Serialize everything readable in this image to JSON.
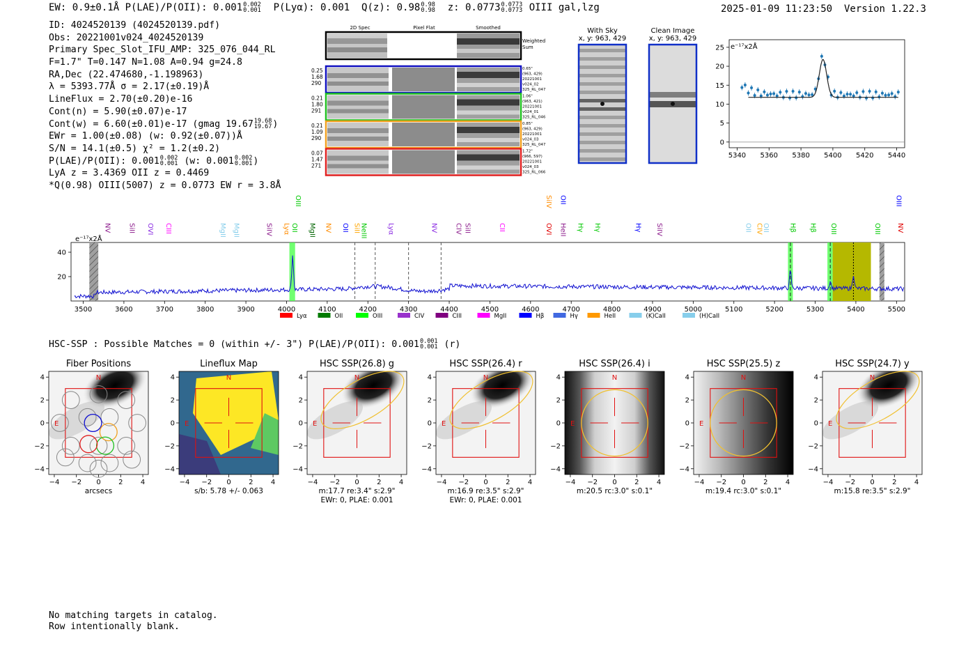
{
  "header": {
    "left": "EW: 0.9±0.1Å  P(LAE)/P(OII): 0.001",
    "left_frac": [
      "0.002",
      "0.001"
    ],
    "plya": "P(Lyα): 0.001",
    "qz": "Q(z): 0.98",
    "qz_frac": [
      "0.98",
      "0.98"
    ],
    "z": "z: 0.0773",
    "z_frac": [
      "0.0773",
      "0.0773"
    ],
    "line": "OIII  gal,lzg",
    "datetime": "2025-01-09 11:23:50",
    "version": "Version 1.22.3"
  },
  "info_lines": [
    "ID: 4024520139 (4024520139.pdf)",
    "Obs: 20221001v024_4024520139",
    "Primary Spec_Slot_IFU_AMP: 325_076_044_RL",
    "F=1.7\"  T=0.147  N=1.08  A=0.94  g=24.8",
    "RA,Dec (22.474680,-1.198963)",
    "λ = 5393.77Å  σ = 2.17(±0.19)Å",
    "LineFlux = 2.70(±0.20)e-16",
    "Cont(n) = 5.90(±0.07)e-17",
    "Cont(w) = 6.60(±0.01)e-17 (gmag 19.67",
    "EWr = 1.00(±0.08) (w: 0.92(±0.07))Å",
    "S/N = 14.1(±0.5)  χ² = 1.2(±0.2)",
    "P(LAE)/P(OII): 0.001",
    "LyA z = 3.4369  OII z = 0.4469",
    "*Q(0.98) OIII(5007) z = 0.0773  EW r = 3.8Å"
  ],
  "info_extra": {
    "gmag_frac": [
      "19.68",
      "19.67"
    ],
    "plae_frac": [
      "0.002",
      "0.001"
    ],
    "plae_w": "(w: 0.001",
    "plae_w_frac": [
      "0.002",
      "0.001"
    ]
  },
  "cutouts": {
    "headers": [
      "2D Spec",
      "Pixel Flat",
      "Smoothed"
    ],
    "weighted_label": [
      "Weighted",
      "Sum"
    ],
    "rows": [
      {
        "left": [
          "0.25",
          "1.68",
          "290"
        ],
        "right": [
          "0.65\"",
          "(963, 429)",
          "20221001",
          "v024_02",
          "325_RL_047"
        ],
        "color": "#1010c0"
      },
      {
        "left": [
          "0.21",
          "1.80",
          "291"
        ],
        "right": [
          "1.06\"",
          "(963, 421)",
          "20221001",
          "v024_01",
          "325_RL_046"
        ],
        "color": "#20c020"
      },
      {
        "left": [
          "0.21",
          "1.09",
          "290"
        ],
        "right": [
          "0.85\"",
          "(963, 429)",
          "20221001",
          "v024_03",
          "325_RL_047"
        ],
        "color": "#f0a020"
      },
      {
        "left": [
          "0.07",
          "1.47",
          "271"
        ],
        "right": [
          "1.72\"",
          "(966, 597)",
          "20221001",
          "v024_03",
          "325_RL_066"
        ],
        "color": "#e02020"
      }
    ]
  },
  "with_sky": {
    "title": "With Sky",
    "coords": "x, y: 963, 429"
  },
  "clean_image": {
    "title": "Clean Image",
    "coords": "x, y: 963, 429"
  },
  "zoom_plot": {
    "unit_label": "e⁻¹⁷x2Å",
    "yticks": [
      "25",
      "20",
      "15",
      "10",
      "5",
      "0"
    ],
    "xticks": [
      "5340",
      "5360",
      "5380",
      "5400",
      "5420",
      "5440"
    ]
  },
  "spectrum": {
    "unit_label": "e⁻¹⁷x2Å",
    "yticks": [
      "40",
      "20"
    ],
    "xticks": [
      "3500",
      "3600",
      "3700",
      "3800",
      "3900",
      "4000",
      "4100",
      "4200",
      "4300",
      "4400",
      "4500",
      "4600",
      "4700",
      "4800",
      "4900",
      "5000",
      "5100",
      "5200",
      "5300",
      "5400",
      "5500"
    ],
    "line_labels": [
      {
        "name": "NV",
        "x": 3555,
        "color": "#8b1a8b",
        "row": 1
      },
      {
        "name": "SiII",
        "x": 3615,
        "color": "#8b1a8b",
        "row": 1
      },
      {
        "name": "OVI",
        "x": 3660,
        "color": "#8a2be2",
        "row": 1
      },
      {
        "name": "CIII",
        "x": 3705,
        "color": "#ff00ff",
        "row": 1
      },
      {
        "name": "MgII",
        "x": 3838,
        "color": "#87ceeb",
        "row": 1
      },
      {
        "name": "MgII",
        "x": 3872,
        "color": "#87ceeb",
        "row": 1
      },
      {
        "name": "SiIV",
        "x": 3952,
        "color": "#8b1a8b",
        "row": 1
      },
      {
        "name": "Lyα",
        "x": 3995,
        "color": "#ff8c00",
        "row": 1
      },
      {
        "name": "OII",
        "x": 4015,
        "color": "#00c800",
        "row": 1
      },
      {
        "name": "OIII",
        "x": 4023,
        "color": "#00c800",
        "row": 0
      },
      {
        "name": "MgII",
        "x": 4058,
        "color": "#006400",
        "row": 1
      },
      {
        "name": "NV",
        "x": 4098,
        "color": "#ff8c00",
        "row": 1
      },
      {
        "name": "OII",
        "x": 4140,
        "color": "#0000ff",
        "row": 1
      },
      {
        "name": "SiII",
        "x": 4168,
        "color": "#ffa500",
        "row": 1
      },
      {
        "name": "NeIII",
        "x": 4185,
        "color": "#00c800",
        "row": 1
      },
      {
        "name": "Lyα",
        "x": 4252,
        "color": "#8a2be2",
        "row": 1
      },
      {
        "name": "NV",
        "x": 4358,
        "color": "#8a2be2",
        "row": 1
      },
      {
        "name": "CIV",
        "x": 4418,
        "color": "#8b1a8b",
        "row": 1
      },
      {
        "name": "SiII",
        "x": 4440,
        "color": "#8b1a8b",
        "row": 1
      },
      {
        "name": "CII",
        "x": 4525,
        "color": "#ff00ff",
        "row": 1
      },
      {
        "name": "SiIV",
        "x": 4640,
        "color": "#ff8c00",
        "row": 0
      },
      {
        "name": "OII",
        "x": 4675,
        "color": "#0000ff",
        "row": 0
      },
      {
        "name": "OVI",
        "x": 4640,
        "color": "#e00000",
        "row": 1
      },
      {
        "name": "HeII",
        "x": 4675,
        "color": "#8b1a8b",
        "row": 1
      },
      {
        "name": "Hγ",
        "x": 4718,
        "color": "#00c800",
        "row": 1
      },
      {
        "name": "Hγ",
        "x": 4760,
        "color": "#00c800",
        "row": 1
      },
      {
        "name": "Hγ",
        "x": 4860,
        "color": "#0000ff",
        "row": 1
      },
      {
        "name": "SiIV",
        "x": 4912,
        "color": "#8b1a8b",
        "row": 1
      },
      {
        "name": "OII",
        "x": 5130,
        "color": "#87ceeb",
        "row": 1
      },
      {
        "name": "CIV",
        "x": 5158,
        "color": "#ffa500",
        "row": 1
      },
      {
        "name": "OII",
        "x": 5174,
        "color": "#87ceeb",
        "row": 1
      },
      {
        "name": "Hβ",
        "x": 5240,
        "color": "#00c800",
        "row": 1
      },
      {
        "name": "Hβ",
        "x": 5290,
        "color": "#00c800",
        "row": 1
      },
      {
        "name": "OIII",
        "x": 5340,
        "color": "#00c800",
        "row": 1
      },
      {
        "name": "OIII",
        "x": 5448,
        "color": "#00c800",
        "row": 1
      },
      {
        "name": "NV",
        "x": 5505,
        "color": "#e00000",
        "row": 1
      },
      {
        "name": "OIII",
        "x": 5500,
        "color": "#0000ff",
        "row": 0
      }
    ],
    "legend": [
      {
        "name": "Lyα",
        "color": "#ff0000"
      },
      {
        "name": "OII",
        "color": "#007a00"
      },
      {
        "name": "OIII",
        "color": "#00ff00"
      },
      {
        "name": "CIV",
        "color": "#9932cc"
      },
      {
        "name": "CIII",
        "color": "#800080"
      },
      {
        "name": "MgII",
        "color": "#ff00ff"
      },
      {
        "name": "Hβ",
        "color": "#0000ff"
      },
      {
        "name": "Hγ",
        "color": "#4169e1"
      },
      {
        "name": "HeII",
        "color": "#ff9900"
      },
      {
        "name": "(K)CaII",
        "color": "#87ceeb"
      },
      {
        "name": "(H)CaII",
        "color": "#87ceeb"
      }
    ]
  },
  "hsc": {
    "title": "HSC-SSP : Possible Matches = 0 (within +/- 3\")  P(LAE)/P(OII): 0.001",
    "title_frac": [
      "0.001",
      "0.001"
    ],
    "title_suffix": "(r)",
    "ticks": [
      "4",
      "2",
      "0",
      "−2",
      "−4"
    ],
    "xticks": [
      "−4",
      "−2",
      "0",
      "2",
      "4"
    ],
    "north": "N",
    "east": "E",
    "panels": [
      {
        "title": "Fiber Positions",
        "caption": [
          "arcsecs"
        ]
      },
      {
        "title": "Lineflux Map",
        "caption": [
          "s/b: 5.78 +/- 0.063"
        ]
      },
      {
        "title": "HSC SSP(26.8) g",
        "caption": [
          "m:17.7  re:3.4\"  s:2.9\"",
          "EWr: 0, PLAE: 0.001"
        ]
      },
      {
        "title": "HSC SSP(26.4) r",
        "caption": [
          "m:16.9  re:3.5\"  s:2.9\"",
          "EWr: 0, PLAE: 0.001"
        ]
      },
      {
        "title": "HSC SSP(26.4) i",
        "caption": [
          "m:20.5 rc:3.0\"  s:0.1\""
        ]
      },
      {
        "title": "HSC SSP(25.5) z",
        "caption": [
          "m:19.4 rc:3.0\"  s:0.1\""
        ]
      },
      {
        "title": "HSC SSP(24.7) y",
        "caption": [
          "m:15.8  re:3.5\"  s:2.9\""
        ]
      }
    ]
  },
  "footer": {
    "line1": "No matching targets in catalog.",
    "line2": "Row intentionally blank."
  }
}
